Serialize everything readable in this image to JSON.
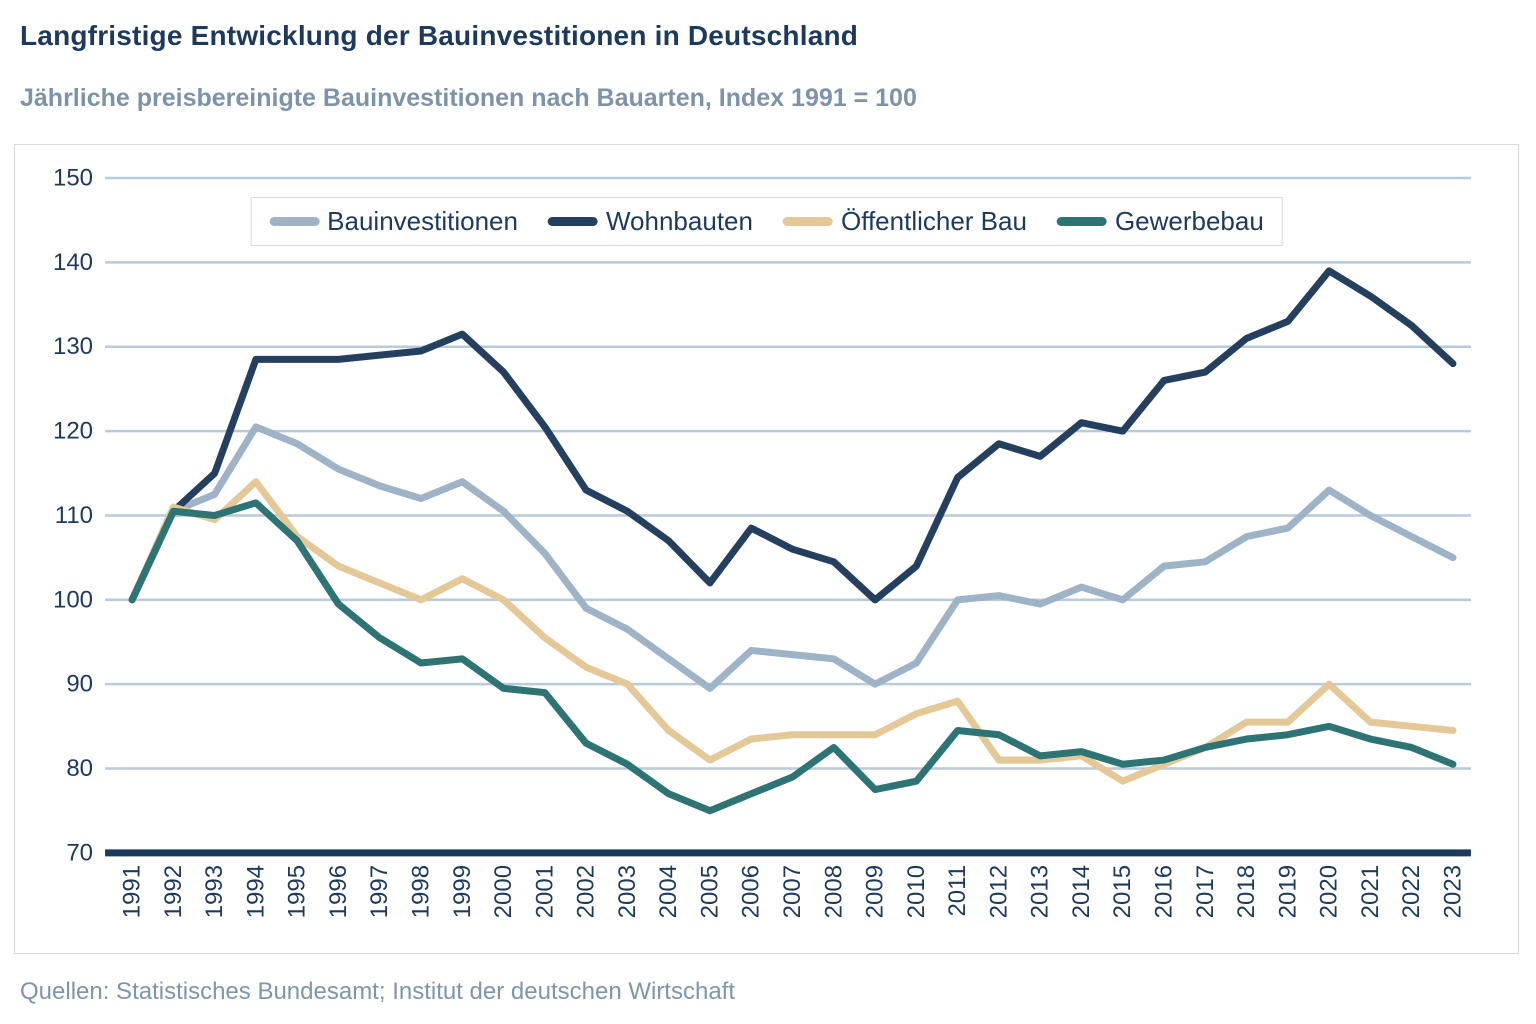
{
  "header": {
    "title": "Langfristige Entwicklung der Bauinvestitionen in Deutschland",
    "subtitle": "Jährliche preisbereinigte Bauinvestitionen nach Bauarten, Index 1991 = 100"
  },
  "footer": {
    "source": "Quellen: Statistisches Bundesamt; Institut der deutschen Wirtschaft"
  },
  "colors": {
    "title": "#1e3a5a",
    "subtitle": "#7d93a8",
    "axis_text": "#1e3a5a",
    "gridline": "#b9cad8",
    "axis_line": "#1e3a5a",
    "panel_border": "#d9d9d9",
    "source_text": "#7f95aa"
  },
  "chart_data": {
    "type": "line",
    "title": "Langfristige Entwicklung der Bauinvestitionen in Deutschland",
    "subtitle": "Jährliche preisbereinigte Bauinvestitionen nach Bauarten, Index 1991 = 100",
    "xlabel": "",
    "ylabel": "",
    "ylim": [
      70,
      150
    ],
    "yticks": [
      70,
      80,
      90,
      100,
      110,
      120,
      130,
      140,
      150
    ],
    "grid": true,
    "legend_position": "top",
    "x": [
      1991,
      1992,
      1993,
      1994,
      1995,
      1996,
      1997,
      1998,
      1999,
      2000,
      2001,
      2002,
      2003,
      2004,
      2005,
      2006,
      2007,
      2008,
      2009,
      2010,
      2011,
      2012,
      2013,
      2014,
      2015,
      2016,
      2017,
      2018,
      2019,
      2020,
      2021,
      2022,
      2023
    ],
    "series": [
      {
        "name": "Bauinvestitionen",
        "color": "#9fb3c6",
        "values": [
          100,
          110.5,
          112.5,
          120.5,
          118.5,
          115.5,
          113.5,
          112,
          114,
          110.5,
          105.5,
          99,
          96.5,
          93,
          89.5,
          94,
          93.5,
          93,
          90,
          92.5,
          100,
          100.5,
          99.5,
          101.5,
          100,
          104,
          104.5,
          107.5,
          108.5,
          113,
          110,
          107.5,
          105
        ]
      },
      {
        "name": "Wohnbauten",
        "color": "#25405f",
        "values": [
          100,
          110.5,
          115,
          128.5,
          128.5,
          128.5,
          129,
          129.5,
          131.5,
          127,
          120.5,
          113,
          110.5,
          107,
          102,
          108.5,
          106,
          104.5,
          100,
          104,
          114.5,
          118.5,
          117,
          121,
          120,
          126,
          127,
          131,
          133,
          139,
          136,
          132.5,
          128
        ]
      },
      {
        "name": "Öffentlicher Bau",
        "color": "#e5c897",
        "values": [
          100,
          111,
          109.5,
          114,
          107.5,
          104,
          102,
          100,
          102.5,
          100,
          95.5,
          92,
          90,
          84.5,
          81,
          83.5,
          84,
          84,
          84,
          86.5,
          88,
          81,
          81,
          81.5,
          78.5,
          80.5,
          82.5,
          85.5,
          85.5,
          90,
          85.5,
          85,
          84.5
        ]
      },
      {
        "name": "Gewerbebau",
        "color": "#2f7474",
        "values": [
          100,
          110.5,
          110,
          111.5,
          107,
          99.5,
          95.5,
          92.5,
          93,
          89.5,
          89,
          83,
          80.5,
          77,
          75,
          77,
          79,
          82.5,
          77.5,
          78.5,
          84.5,
          84,
          81.5,
          82,
          80.5,
          81,
          82.5,
          83.5,
          84,
          85,
          83.5,
          82.5,
          80.5
        ]
      }
    ]
  }
}
